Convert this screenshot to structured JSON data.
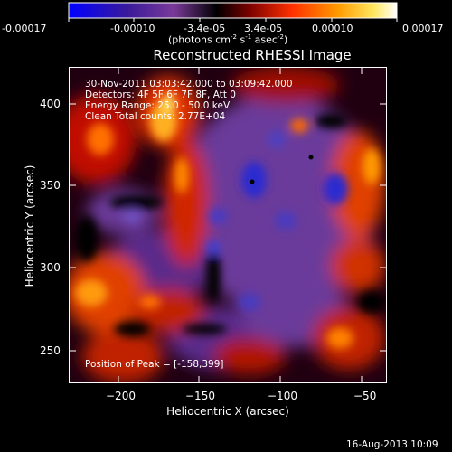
{
  "colorbar": {
    "ticks": [
      "-0.00017",
      "-0.00010",
      "-3.4e-05",
      "3.4e-05",
      "0.00010",
      "0.00017"
    ],
    "unit_prefix": "(photons cm",
    "unit_exp1": "-2",
    "unit_mid": " s",
    "unit_exp2": "-1",
    "unit_mid2": " asec",
    "unit_exp3": "-2",
    "unit_suffix": ")",
    "gradient": [
      "#0000ff",
      "#3a1a9a",
      "#7a3a9a",
      "#000000",
      "#7a0000",
      "#ff3000",
      "#ff9a00",
      "#ffe860",
      "#ffffff"
    ]
  },
  "plot": {
    "title": "Reconstructed RHESSI Image",
    "annotation_lines": [
      "30-Nov-2011 03:03:42.000 to 03:09:42.000",
      "Detectors: 4F 5F 6F 7F 8F, Att 0",
      "Energy Range: 25.0 - 50.0 keV",
      "Clean    Total counts: 2.77E+04"
    ],
    "peak_label": "Position of Peak = [-158,399]",
    "xlabel": "Heliocentric X (arcsec)",
    "ylabel": "Heliocentric Y (arcsec)",
    "x_ticks": [
      "−200",
      "−150",
      "−100",
      "−50"
    ],
    "y_ticks": [
      "400",
      "350",
      "300",
      "250"
    ]
  },
  "footer": {
    "date": "16-Aug-2013 10:09"
  }
}
